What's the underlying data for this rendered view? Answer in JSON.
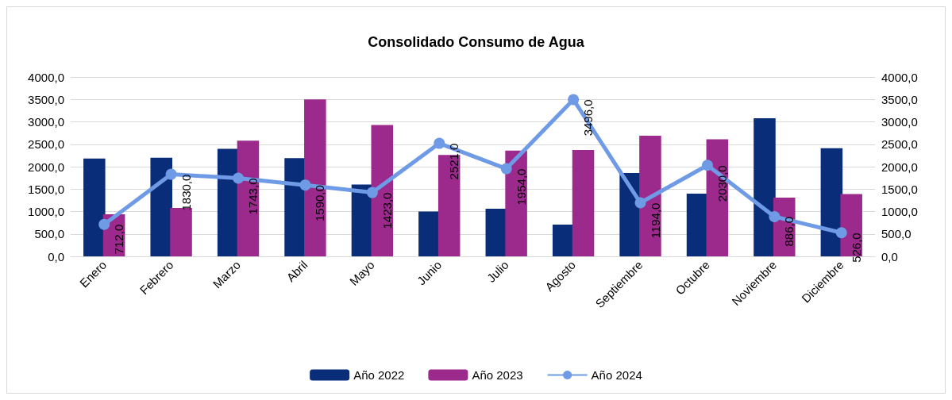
{
  "chart_data": {
    "type": "bar",
    "title": "Consolidado Consumo de Agua",
    "categories": [
      "Enero",
      "Febrero",
      "Marzo",
      "Abril",
      "Mayo",
      "Junio",
      "Julio",
      "Agosto",
      "Septiembre",
      "Octubre",
      "Noviembre",
      "Diciembre"
    ],
    "series": [
      {
        "name": "Año 2022",
        "color": "#0a2d7a",
        "values": [
          2180,
          2200,
          2400,
          2190,
          1600,
          1000,
          1060,
          710,
          1860,
          1400,
          3080,
          2410
        ]
      },
      {
        "name": "Año 2023",
        "color": "#9b2a8c",
        "values": [
          940,
          1080,
          2580,
          3500,
          2930,
          2260,
          2360,
          2370,
          2690,
          2610,
          1310,
          1390
        ]
      },
      {
        "name": "Año 2024",
        "type": "line",
        "color": "#6f9be6",
        "marker": "circle",
        "values": [
          712,
          1830,
          1743,
          1590,
          1423,
          2521,
          1954,
          3496,
          1194,
          2030,
          886,
          526
        ],
        "value_labels": [
          "712,0",
          "1830,0",
          "1743,0",
          "1590,0",
          "1423,0",
          "2521,0",
          "1954,0",
          "3496,0",
          "1194,0",
          "2030,0",
          "886,0",
          "526,0"
        ]
      }
    ],
    "ylim": [
      0,
      4000
    ],
    "yticks": [
      {
        "value": 0,
        "label": "0,0"
      },
      {
        "value": 500,
        "label": "500,0"
      },
      {
        "value": 1000,
        "label": "1000,0"
      },
      {
        "value": 1500,
        "label": "1500,0"
      },
      {
        "value": 2000,
        "label": "2000,0"
      },
      {
        "value": 2500,
        "label": "2500,0"
      },
      {
        "value": 3000,
        "label": "3000,0"
      },
      {
        "value": 3500,
        "label": "3500,0"
      },
      {
        "value": 4000,
        "label": "4000,0"
      }
    ],
    "y2lim": [
      0,
      4000
    ],
    "y2ticks": [
      {
        "value": 0,
        "label": "0,0"
      },
      {
        "value": 500,
        "label": "500,0"
      },
      {
        "value": 1000,
        "label": "1000,0"
      },
      {
        "value": 1500,
        "label": "1500,0"
      },
      {
        "value": 2000,
        "label": "2000,0"
      },
      {
        "value": 2500,
        "label": "2500,0"
      },
      {
        "value": 3000,
        "label": "3000,0"
      },
      {
        "value": 3500,
        "label": "3500,0"
      },
      {
        "value": 4000,
        "label": "4000,0"
      }
    ],
    "grid": "y",
    "legend": "bottom"
  }
}
